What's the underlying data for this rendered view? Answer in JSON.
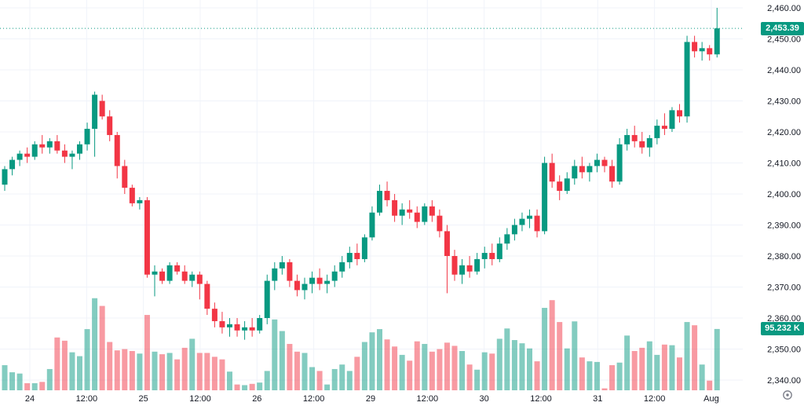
{
  "chart_data": {
    "type": "candlestick",
    "subtype": "price-with-volume-overlay",
    "last_price": 2453.39,
    "last_price_label": "2,453.39",
    "last_volume_label": "95.232 K",
    "price_axis": {
      "min": 2340,
      "max": 2460,
      "step": 10,
      "labels": [
        "2,460.00",
        "2,450.00",
        "2,440.00",
        "2,430.00",
        "2,420.00",
        "2,410.00",
        "2,400.00",
        "2,390.00",
        "2,380.00",
        "2,370.00",
        "2,360.00",
        "2,350.00",
        "2,340.00"
      ]
    },
    "time_axis": {
      "labels": [
        "24",
        "12:00",
        "25",
        "12:00",
        "26",
        "12:00",
        "29",
        "12:00",
        "30",
        "12:00",
        "31",
        "12:00",
        "Aug"
      ]
    },
    "legend_position": "none",
    "grid": true,
    "colors": {
      "up": "#089981",
      "down": "#f23645",
      "volume_up": "rgba(8,153,129,0.5)",
      "volume_down": "rgba(242,54,69,0.5)",
      "grid": "#f0f3fa",
      "axis_text": "#131722",
      "badge_bg": "#089981",
      "badge_text": "#ffffff",
      "last_price_line": "#089981",
      "icon": "#787b86",
      "background": "#ffffff"
    },
    "ohlc": [
      [
        2403,
        2409,
        2401,
        2408
      ],
      [
        2408,
        2412,
        2406,
        2411
      ],
      [
        2411,
        2414,
        2409,
        2413
      ],
      [
        2413,
        2415,
        2410,
        2412
      ],
      [
        2412,
        2417,
        2411,
        2416
      ],
      [
        2416,
        2419,
        2413,
        2415
      ],
      [
        2415,
        2418,
        2413,
        2417
      ],
      [
        2417,
        2419,
        2413,
        2414
      ],
      [
        2414,
        2416,
        2410,
        2412
      ],
      [
        2412,
        2414,
        2408,
        2413
      ],
      [
        2413,
        2417,
        2411,
        2416
      ],
      [
        2416,
        2423,
        2414,
        2421
      ],
      [
        2421,
        2433,
        2412,
        2432
      ],
      [
        2430,
        2432,
        2424,
        2425
      ],
      [
        2425,
        2427,
        2417,
        2419
      ],
      [
        2419,
        2420,
        2405,
        2409
      ],
      [
        2409,
        2411,
        2400,
        2402
      ],
      [
        2402,
        2403,
        2396,
        2397
      ],
      [
        2397,
        2399,
        2395,
        2398
      ],
      [
        2398,
        2399,
        2373,
        2374
      ],
      [
        2374,
        2377,
        2367,
        2375
      ],
      [
        2375,
        2376,
        2371,
        2372
      ],
      [
        2372,
        2378,
        2371,
        2377
      ],
      [
        2377,
        2378,
        2374,
        2375
      ],
      [
        2375,
        2377,
        2371,
        2372
      ],
      [
        2372,
        2375,
        2370,
        2374
      ],
      [
        2374,
        2375,
        2366,
        2371
      ],
      [
        2371,
        2372,
        2361,
        2363
      ],
      [
        2363,
        2365,
        2357,
        2359
      ],
      [
        2359,
        2362,
        2355,
        2357
      ],
      [
        2357,
        2360,
        2354,
        2358
      ],
      [
        2358,
        2360,
        2354,
        2356
      ],
      [
        2356,
        2359,
        2353,
        2357
      ],
      [
        2357,
        2360,
        2354,
        2356
      ],
      [
        2356,
        2361,
        2355,
        2360
      ],
      [
        2360,
        2374,
        2358,
        2372
      ],
      [
        2372,
        2378,
        2369,
        2376
      ],
      [
        2376,
        2380,
        2374,
        2378
      ],
      [
        2378,
        2379,
        2370,
        2372
      ],
      [
        2372,
        2374,
        2367,
        2369
      ],
      [
        2369,
        2373,
        2366,
        2371
      ],
      [
        2371,
        2375,
        2368,
        2373
      ],
      [
        2373,
        2376,
        2369,
        2371
      ],
      [
        2371,
        2374,
        2368,
        2372
      ],
      [
        2372,
        2377,
        2370,
        2375
      ],
      [
        2375,
        2380,
        2373,
        2378
      ],
      [
        2378,
        2383,
        2376,
        2381
      ],
      [
        2381,
        2384,
        2377,
        2379
      ],
      [
        2379,
        2387,
        2378,
        2386
      ],
      [
        2386,
        2396,
        2385,
        2394
      ],
      [
        2394,
        2403,
        2393,
        2401
      ],
      [
        2401,
        2404,
        2396,
        2398
      ],
      [
        2398,
        2400,
        2391,
        2393
      ],
      [
        2393,
        2397,
        2390,
        2395
      ],
      [
        2395,
        2398,
        2392,
        2394
      ],
      [
        2394,
        2396,
        2389,
        2391
      ],
      [
        2391,
        2397,
        2390,
        2396
      ],
      [
        2396,
        2398,
        2391,
        2393
      ],
      [
        2393,
        2395,
        2386,
        2388
      ],
      [
        2388,
        2390,
        2368,
        2380
      ],
      [
        2380,
        2382,
        2372,
        2374
      ],
      [
        2374,
        2379,
        2371,
        2377
      ],
      [
        2377,
        2380,
        2373,
        2375
      ],
      [
        2375,
        2381,
        2374,
        2379
      ],
      [
        2379,
        2383,
        2376,
        2381
      ],
      [
        2381,
        2384,
        2377,
        2379
      ],
      [
        2379,
        2386,
        2378,
        2384
      ],
      [
        2384,
        2389,
        2382,
        2387
      ],
      [
        2387,
        2392,
        2385,
        2390
      ],
      [
        2390,
        2394,
        2388,
        2392
      ],
      [
        2392,
        2395,
        2389,
        2393
      ],
      [
        2393,
        2395,
        2386,
        2388
      ],
      [
        2388,
        2412,
        2387,
        2410
      ],
      [
        2410,
        2413,
        2402,
        2404
      ],
      [
        2404,
        2406,
        2398,
        2401
      ],
      [
        2401,
        2407,
        2400,
        2405
      ],
      [
        2405,
        2411,
        2403,
        2409
      ],
      [
        2409,
        2412,
        2405,
        2407
      ],
      [
        2407,
        2410,
        2404,
        2409
      ],
      [
        2409,
        2413,
        2407,
        2411
      ],
      [
        2411,
        2412,
        2407,
        2409
      ],
      [
        2409,
        2411,
        2402,
        2404
      ],
      [
        2404,
        2418,
        2403,
        2416
      ],
      [
        2416,
        2421,
        2414,
        2419
      ],
      [
        2419,
        2422,
        2415,
        2417
      ],
      [
        2417,
        2420,
        2413,
        2415
      ],
      [
        2415,
        2419,
        2412,
        2418
      ],
      [
        2418,
        2424,
        2416,
        2422
      ],
      [
        2422,
        2426,
        2419,
        2421
      ],
      [
        2421,
        2428,
        2420,
        2427
      ],
      [
        2427,
        2429,
        2423,
        2425
      ],
      [
        2425,
        2451,
        2423,
        2449
      ],
      [
        2449,
        2451,
        2444,
        2446
      ],
      [
        2446,
        2449,
        2443,
        2447
      ],
      [
        2447,
        2448,
        2443,
        2445
      ],
      [
        2445,
        2460,
        2444,
        2453.39
      ]
    ],
    "volumes_k": [
      39,
      28,
      26,
      11,
      11,
      13,
      33,
      82,
      77,
      59,
      53,
      95,
      143,
      131,
      75,
      62,
      64,
      61,
      57,
      117,
      60,
      56,
      58,
      48,
      66,
      80,
      58,
      58,
      52,
      48,
      29,
      9,
      8,
      10,
      12,
      30,
      110,
      92,
      72,
      60,
      58,
      36,
      30,
      9,
      33,
      40,
      30,
      52,
      75,
      90,
      95,
      79,
      68,
      55,
      46,
      76,
      72,
      60,
      64,
      74,
      69,
      61,
      40,
      32,
      59,
      57,
      80,
      96,
      78,
      73,
      65,
      45,
      128,
      140,
      106,
      65,
      107,
      51,
      45,
      44,
      3,
      39,
      43,
      85,
      61,
      66,
      76,
      55,
      71,
      70,
      51,
      106,
      101,
      40,
      15,
      95.232
    ]
  }
}
